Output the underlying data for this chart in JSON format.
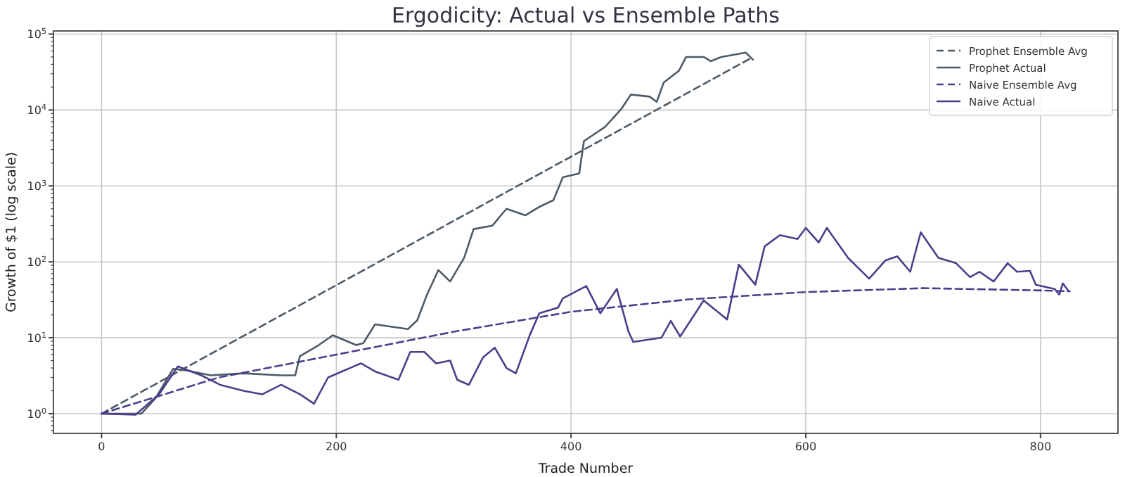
{
  "chart_data": {
    "type": "line",
    "title": "Ergodicity: Actual vs Ensemble Paths",
    "xlabel": "Trade Number",
    "ylabel": "Growth of $1 (log scale)",
    "xlim": [
      -41,
      866
    ],
    "xticks": [
      0,
      200,
      400,
      600,
      800
    ],
    "ylim": [
      0.55,
      110000
    ],
    "yticks": [
      {
        "value": 1,
        "label": "10$^{0}$"
      },
      {
        "value": 10,
        "label": "10$^{1}$"
      },
      {
        "value": 100,
        "label": "10$^{2}$"
      },
      {
        "value": 1000,
        "label": "10$^{3}$"
      },
      {
        "value": 10000,
        "label": "10$^{4}$"
      },
      {
        "value": 100000,
        "label": "10$^{5}$"
      }
    ],
    "log": "y",
    "grid": true,
    "legend": "top right",
    "series": [
      {
        "name": "Prophet Ensemble Avg",
        "color": "#4d5a66",
        "line_style": "dashed",
        "x": [
          0,
          552
        ],
        "values": [
          1,
          47000
        ]
      },
      {
        "name": "Prophet Actual",
        "color": "#4d5a66",
        "line_style": "solid",
        "x": [
          0,
          34,
          46,
          61,
          73,
          93,
          121,
          153,
          165,
          169,
          185,
          197,
          217,
          223,
          233,
          261,
          269,
          277,
          287,
          297,
          309,
          317,
          333,
          345,
          361,
          373,
          385,
          393,
          407,
          411,
          429,
          443,
          451,
          467,
          473,
          479,
          492,
          498,
          513,
          519,
          528,
          549,
          555
        ],
        "values": [
          1,
          1,
          1.6,
          3.9,
          3.7,
          3.2,
          3.4,
          3.2,
          3.2,
          5.7,
          8,
          10.8,
          8,
          8.5,
          15,
          13,
          17,
          36,
          78,
          55,
          114,
          270,
          300,
          500,
          410,
          530,
          650,
          1300,
          1460,
          3900,
          6000,
          10400,
          16000,
          15000,
          12800,
          23000,
          33000,
          50000,
          50000,
          44000,
          50000,
          57000,
          46000
        ]
      },
      {
        "name": "Naive Ensemble Avg",
        "color": "#4b3f8c",
        "line_style": "dashed",
        "x": [
          0,
          100,
          200,
          300,
          400,
          500,
          600,
          700,
          800,
          825
        ],
        "values": [
          1,
          3,
          6,
          12,
          22,
          32,
          40,
          45,
          42,
          41
        ]
      },
      {
        "name": "Naive Actual",
        "color": "#4b3f8c",
        "line_style": "solid",
        "x": [
          0,
          29,
          49,
          65,
          85,
          101,
          121,
          137,
          153,
          169,
          181,
          193,
          221,
          233,
          253,
          263,
          275,
          285,
          297,
          303,
          313,
          325,
          335,
          345,
          353,
          365,
          373,
          389,
          393,
          413,
          425,
          439,
          449,
          453,
          477,
          485,
          493,
          513,
          533,
          543,
          557,
          565,
          578,
          593,
          600,
          611,
          618,
          636,
          654,
          668,
          678,
          689,
          698,
          713,
          728,
          740,
          748,
          760,
          772,
          780,
          791,
          796,
          812,
          816,
          819,
          824
        ],
        "values": [
          1,
          0.97,
          1.8,
          4.2,
          3.2,
          2.4,
          2,
          1.8,
          2.4,
          1.8,
          1.35,
          3,
          4.6,
          3.6,
          2.8,
          6.5,
          6.5,
          4.6,
          5,
          2.8,
          2.4,
          5.5,
          7.4,
          4,
          3.4,
          11,
          21,
          25,
          33,
          48,
          21,
          44,
          12,
          8.8,
          10,
          16.7,
          10.4,
          31,
          17.4,
          92,
          50,
          160,
          225,
          200,
          280,
          180,
          280,
          113,
          60,
          105,
          118,
          74,
          245,
          113,
          96,
          63,
          74,
          55,
          96,
          74,
          76,
          50,
          44,
          37,
          52,
          41
        ]
      }
    ]
  }
}
